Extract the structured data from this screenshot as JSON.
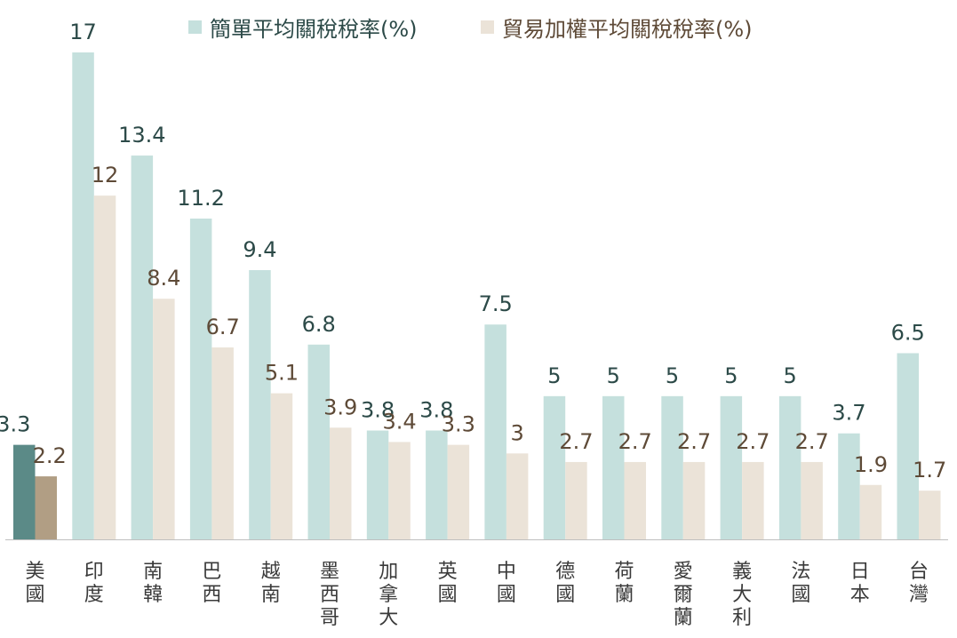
{
  "chart_data": {
    "type": "bar",
    "title": "",
    "xlabel": "",
    "ylabel": "",
    "ylim": [
      0,
      17.5
    ],
    "grid": false,
    "legend_position": "top",
    "categories": [
      "美國",
      "印度",
      "南韓",
      "巴西",
      "越南",
      "墨西哥",
      "加拿大",
      "英國",
      "中國",
      "德國",
      "荷蘭",
      "愛爾蘭",
      "義大利",
      "法國",
      "日本",
      "台灣"
    ],
    "series": [
      {
        "name": "簡單平均關稅稅率(%)",
        "values": [
          3.3,
          17,
          13.4,
          11.2,
          9.4,
          6.8,
          3.8,
          3.8,
          7.5,
          5,
          5,
          5,
          5,
          5,
          3.7,
          6.5
        ],
        "labels": [
          "3.3",
          "17",
          "13.4",
          "11.2",
          "9.4",
          "6.8",
          "3.8",
          "3.8",
          "7.5",
          "5",
          "5",
          "5",
          "5",
          "5",
          "3.7",
          "6.5"
        ],
        "color": "#c5e0dd",
        "highlight_color": "#5b8a87",
        "label_color": "#2c4a48"
      },
      {
        "name": "貿易加權平均關稅稅率(%)",
        "values": [
          2.2,
          12,
          8.4,
          6.7,
          5.1,
          3.9,
          3.4,
          3.3,
          3,
          2.7,
          2.7,
          2.7,
          2.7,
          2.7,
          1.9,
          1.7
        ],
        "labels": [
          "2.2",
          "12",
          "8.4",
          "6.7",
          "5.1",
          "3.9",
          "3.4",
          "3.3",
          "3",
          "2.7",
          "2.7",
          "2.7",
          "2.7",
          "2.7",
          "1.9",
          "1.7"
        ],
        "color": "#ebe3d8",
        "highlight_color": "#b19e84",
        "label_color": "#5e4a37"
      }
    ],
    "highlight_category": "美國",
    "axis_color": "#bfbfbf",
    "category_label_color": "#3a3a3a"
  }
}
